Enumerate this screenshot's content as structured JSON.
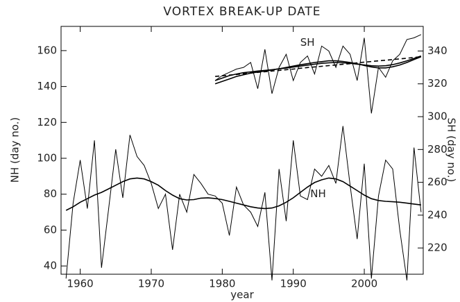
{
  "chart_data": {
    "type": "line",
    "title": "VORTEX BREAK-UP DATE",
    "xlabel": "year",
    "ylabel": "NH (day no.)",
    "y2label": "SH (day no.)",
    "x": [
      1958,
      1959,
      1960,
      1961,
      1962,
      1963,
      1964,
      1965,
      1966,
      1967,
      1968,
      1969,
      1970,
      1971,
      1972,
      1973,
      1974,
      1975,
      1976,
      1977,
      1978,
      1979,
      1980,
      1981,
      1982,
      1983,
      1984,
      1985,
      1986,
      1987,
      1988,
      1989,
      1990,
      1991,
      1992,
      1993,
      1994,
      1995,
      1996,
      1997,
      1998,
      1999,
      2000,
      2001,
      2002,
      2003,
      2004,
      2005,
      2006,
      2007,
      2008
    ],
    "series": [
      {
        "name": "NH",
        "color": "#000000",
        "values": [
          33,
          75,
          99,
          72,
          110,
          39,
          72,
          105,
          78,
          113,
          101,
          96,
          86,
          72,
          80,
          49,
          80,
          70,
          91,
          86,
          80,
          79,
          75,
          57,
          84,
          74,
          70,
          62,
          81,
          32,
          94,
          65,
          110,
          79,
          77,
          94,
          90,
          96,
          86,
          118,
          85,
          55,
          97,
          33,
          79,
          99,
          94,
          60,
          32,
          106,
          70
        ]
      },
      {
        "color": "#000000",
        "values": [
          71,
          73,
          75.5,
          77.5,
          79.5,
          81,
          83,
          85,
          87,
          88.5,
          89,
          88.5,
          87,
          85,
          82,
          79.5,
          77.5,
          76.8,
          77,
          77.8,
          78,
          77.6,
          77,
          76,
          75,
          74,
          73,
          72.3,
          72,
          72.3,
          73.5,
          75.5,
          78,
          81,
          84,
          86.5,
          88,
          89,
          88.5,
          87,
          84.5,
          82,
          79.5,
          77.5,
          76.5,
          76,
          75.8,
          75.5,
          75,
          74.5,
          74
        ]
      },
      {
        "name": "SH",
        "color": "#000000",
        "axis": "y2",
        "values": [
          null,
          null,
          null,
          null,
          null,
          null,
          null,
          null,
          null,
          null,
          null,
          null,
          null,
          null,
          null,
          null,
          null,
          null,
          null,
          null,
          null,
          322,
          325,
          327,
          329,
          330,
          333,
          317,
          341,
          314,
          330,
          338,
          322,
          333,
          337,
          326,
          343,
          340,
          330,
          343,
          338,
          322,
          348,
          302,
          330,
          324,
          334,
          338,
          347,
          348,
          350
        ]
      },
      {
        "color": "#000000",
        "axis": "y2",
        "values": [
          null,
          null,
          null,
          null,
          null,
          null,
          null,
          null,
          null,
          null,
          null,
          null,
          null,
          null,
          null,
          null,
          null,
          null,
          null,
          null,
          null,
          320,
          321.5,
          323,
          324.5,
          325.5,
          326.5,
          327.2,
          327.8,
          328.5,
          329.2,
          330,
          330.8,
          331.6,
          332.3,
          333,
          333.5,
          334,
          334,
          333.6,
          333,
          332.2,
          331.2,
          330.3,
          329.7,
          329.7,
          330.4,
          331.5,
          333,
          334.8,
          336.5
        ]
      },
      {
        "color": "#000000",
        "axis": "y2",
        "values": [
          null,
          null,
          null,
          null,
          null,
          null,
          null,
          null,
          null,
          null,
          null,
          null,
          null,
          null,
          null,
          null,
          null,
          null,
          null,
          null,
          null,
          322,
          323.5,
          325,
          326,
          326.8,
          327.3,
          327.8,
          328.2,
          328.6,
          329.1,
          329.6,
          330.2,
          330.8,
          331.4,
          332,
          332.5,
          332.8,
          333,
          332.8,
          332.5,
          332,
          331.5,
          331,
          330.8,
          331,
          331.7,
          332.7,
          334,
          335.5,
          337
        ]
      },
      {
        "color": "#000000",
        "axis": "y2",
        "dashed": true,
        "values": [
          null,
          null,
          null,
          null,
          null,
          null,
          null,
          null,
          null,
          null,
          null,
          null,
          null,
          null,
          null,
          null,
          null,
          null,
          null,
          null,
          null,
          324.5,
          324.9,
          325.3,
          325.7,
          326.2,
          326.6,
          327,
          327.4,
          327.8,
          328.2,
          328.6,
          329,
          329.5,
          329.9,
          330.3,
          330.7,
          331.1,
          331.5,
          331.9,
          332.3,
          332.8,
          333.2,
          333.6,
          334,
          334.4,
          334.8,
          335.2,
          335.6,
          336.1,
          336.5
        ]
      }
    ],
    "xlim": [
      1957.3,
      2008.3
    ],
    "xticks": [
      1960,
      1970,
      1980,
      1990,
      2000
    ],
    "ylim": [
      35.4,
      173.5
    ],
    "yticks": [
      40,
      60,
      80,
      100,
      120,
      140,
      160
    ],
    "y2lim": [
      204,
      355
    ],
    "y2ticks": [
      220,
      240,
      260,
      280,
      300,
      320,
      340
    ]
  }
}
